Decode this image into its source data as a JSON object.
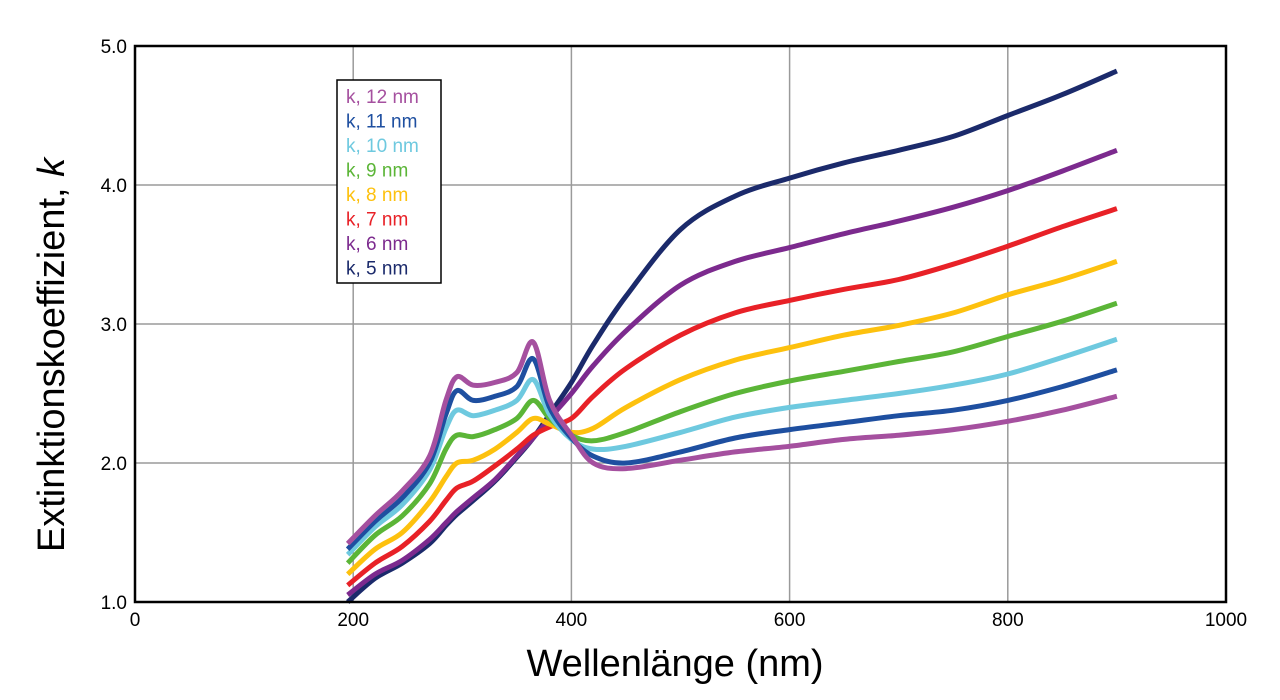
{
  "chart_data": {
    "type": "line",
    "title": "",
    "xlabel": "Wellenlänge (nm)",
    "ylabel": "Extinktionskoeffizient, ",
    "ylabel_symbol": "k",
    "xlim": [
      0,
      1000
    ],
    "ylim": [
      1.0,
      5.0
    ],
    "x_ticks": [
      0,
      200,
      400,
      600,
      800,
      1000
    ],
    "x_tick_labels": [
      "0",
      "200",
      "400",
      "600",
      "800",
      "1000"
    ],
    "y_ticks": [
      1,
      2,
      3,
      4,
      5
    ],
    "y_tick_labels": [
      "1.0",
      "2.0",
      "3.0",
      "4.0",
      "5.0"
    ],
    "grid": true,
    "legend_position": "top-left",
    "x": [
      195,
      220,
      245,
      270,
      285,
      295,
      310,
      330,
      350,
      365,
      380,
      400,
      420,
      450,
      500,
      550,
      600,
      650,
      700,
      750,
      800,
      850,
      900
    ],
    "series": [
      {
        "name": "k, 12 nm",
        "color": "#a5509f",
        "values": [
          1.42,
          1.62,
          1.8,
          2.05,
          2.45,
          2.62,
          2.56,
          2.58,
          2.65,
          2.87,
          2.45,
          2.2,
          2.0,
          1.96,
          2.02,
          2.08,
          2.12,
          2.17,
          2.2,
          2.24,
          2.3,
          2.38,
          2.48
        ]
      },
      {
        "name": "k, 11 nm",
        "color": "#1e4fa0",
        "values": [
          1.38,
          1.58,
          1.75,
          2.0,
          2.35,
          2.52,
          2.45,
          2.48,
          2.55,
          2.75,
          2.4,
          2.18,
          2.05,
          2.0,
          2.08,
          2.18,
          2.24,
          2.29,
          2.34,
          2.38,
          2.45,
          2.55,
          2.67
        ]
      },
      {
        "name": "k, 10 nm",
        "color": "#6ec9df",
        "values": [
          1.34,
          1.54,
          1.7,
          1.95,
          2.25,
          2.38,
          2.34,
          2.38,
          2.45,
          2.6,
          2.35,
          2.17,
          2.1,
          2.12,
          2.22,
          2.33,
          2.4,
          2.45,
          2.5,
          2.56,
          2.64,
          2.76,
          2.89
        ]
      },
      {
        "name": "k, 9 nm",
        "color": "#5bb537",
        "values": [
          1.28,
          1.48,
          1.62,
          1.85,
          2.1,
          2.2,
          2.19,
          2.24,
          2.32,
          2.45,
          2.32,
          2.2,
          2.16,
          2.22,
          2.37,
          2.5,
          2.59,
          2.66,
          2.73,
          2.8,
          2.91,
          3.02,
          3.15
        ]
      },
      {
        "name": "k, 8 nm",
        "color": "#fdc10e",
        "values": [
          1.2,
          1.38,
          1.5,
          1.72,
          1.9,
          2.0,
          2.02,
          2.1,
          2.22,
          2.32,
          2.28,
          2.22,
          2.25,
          2.4,
          2.6,
          2.74,
          2.83,
          2.92,
          2.99,
          3.08,
          3.21,
          3.32,
          3.45
        ]
      },
      {
        "name": "k, 7 nm",
        "color": "#e82127",
        "values": [
          1.12,
          1.28,
          1.4,
          1.58,
          1.73,
          1.82,
          1.87,
          1.98,
          2.1,
          2.2,
          2.26,
          2.32,
          2.48,
          2.68,
          2.92,
          3.08,
          3.17,
          3.25,
          3.32,
          3.43,
          3.56,
          3.7,
          3.83
        ]
      },
      {
        "name": "k, 6 nm",
        "color": "#7c2a8e",
        "values": [
          1.05,
          1.2,
          1.3,
          1.45,
          1.57,
          1.65,
          1.75,
          1.88,
          2.05,
          2.18,
          2.32,
          2.5,
          2.7,
          2.95,
          3.28,
          3.45,
          3.55,
          3.65,
          3.74,
          3.84,
          3.96,
          4.1,
          4.25
        ]
      },
      {
        "name": "k, 5 nm",
        "color": "#1b2a6b",
        "values": [
          1.0,
          1.17,
          1.28,
          1.42,
          1.55,
          1.63,
          1.73,
          1.87,
          2.04,
          2.18,
          2.35,
          2.58,
          2.85,
          3.2,
          3.68,
          3.92,
          4.05,
          4.16,
          4.25,
          4.35,
          4.5,
          4.65,
          4.82
        ]
      }
    ]
  }
}
